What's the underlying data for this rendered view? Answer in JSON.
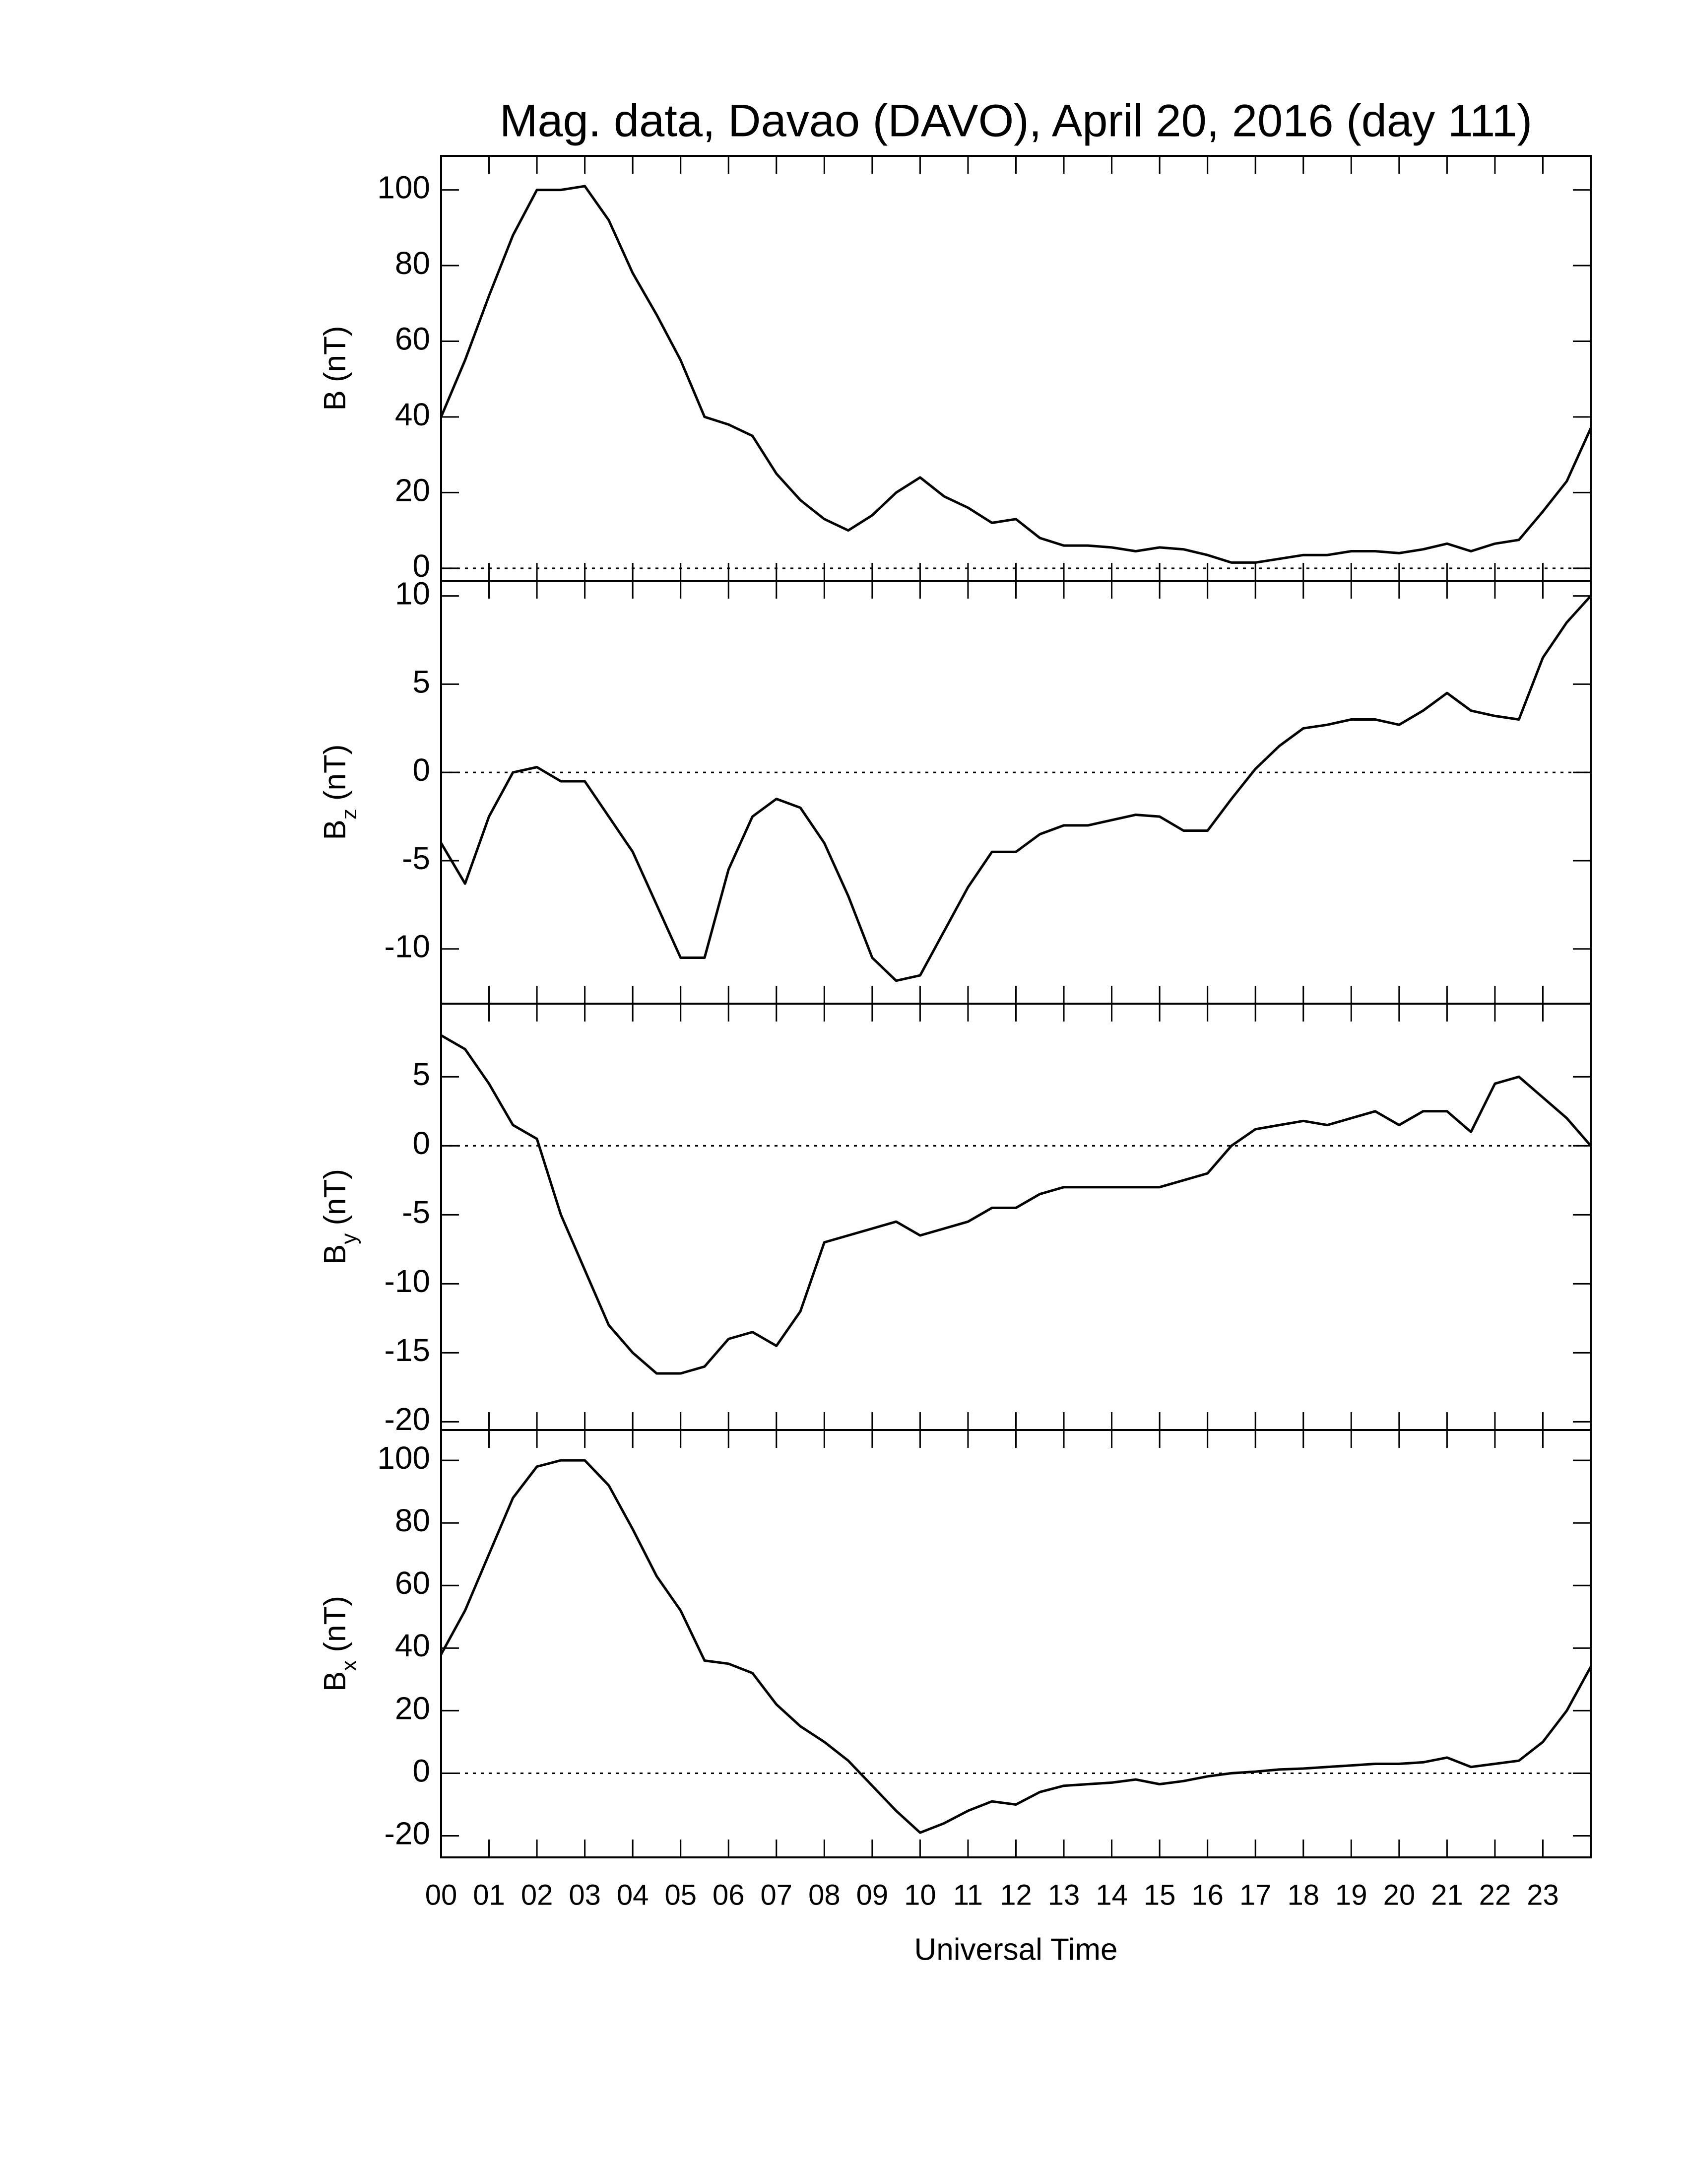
{
  "chart_data": [
    {
      "type": "line",
      "title": "Mag. data, Davao (DAVO), April 20, 2016 (day 111)",
      "ylabel": "B",
      "ylabel_unit": "(nT)",
      "color": "#000000",
      "x": [
        0,
        0.5,
        1,
        1.5,
        2,
        2.5,
        3,
        3.5,
        4,
        4.5,
        5,
        5.5,
        6,
        6.5,
        7,
        7.5,
        8,
        8.5,
        9,
        9.5,
        10,
        10.5,
        11,
        11.5,
        12,
        12.5,
        13,
        13.5,
        14,
        14.5,
        15,
        15.5,
        16,
        16.5,
        17,
        17.5,
        18,
        18.5,
        19,
        19.5,
        20,
        20.5,
        21,
        21.5,
        22,
        22.5,
        23,
        23.5,
        24
      ],
      "values": [
        40,
        55,
        72,
        88,
        100,
        100,
        101,
        92,
        78,
        67,
        55,
        40,
        38,
        35,
        25,
        18,
        13,
        10,
        14,
        20,
        24,
        19,
        16,
        12,
        13,
        8,
        6,
        6,
        5.5,
        4.5,
        5.5,
        5,
        3.5,
        1.5,
        1.5,
        2.5,
        3.5,
        3.5,
        4.5,
        4.5,
        4,
        5,
        6.5,
        4.5,
        6.5,
        7.5,
        15,
        23,
        37
      ],
      "xlim": [
        0,
        24
      ],
      "ylim": [
        -3.3,
        109
      ],
      "yticks": [
        0,
        20,
        40,
        60,
        80,
        100
      ]
    },
    {
      "type": "line",
      "ylabel": "B",
      "ylabel_subscript": "z",
      "ylabel_unit": "(nT)",
      "color": "#000000",
      "x": [
        0,
        0.5,
        1,
        1.5,
        2,
        2.5,
        3,
        3.5,
        4,
        4.5,
        5,
        5.5,
        6,
        6.5,
        7,
        7.5,
        8,
        8.5,
        9,
        9.5,
        10,
        10.5,
        11,
        11.5,
        12,
        12.5,
        13,
        13.5,
        14,
        14.5,
        15,
        15.5,
        16,
        16.5,
        17,
        17.5,
        18,
        18.5,
        19,
        19.5,
        20,
        20.5,
        21,
        21.5,
        22,
        22.5,
        23,
        23.5,
        24
      ],
      "values": [
        -4,
        -6.3,
        -2.5,
        0,
        0.3,
        -0.5,
        -0.5,
        -2.5,
        -4.5,
        -7.5,
        -10.5,
        -10.5,
        -5.5,
        -2.5,
        -1.5,
        -2,
        -4,
        -7,
        -10.5,
        -11.8,
        -11.5,
        -9,
        -6.5,
        -4.5,
        -4.5,
        -3.5,
        -3,
        -3,
        -2.7,
        -2.4,
        -2.5,
        -3.3,
        -3.3,
        -1.5,
        0.2,
        1.5,
        2.5,
        2.7,
        3,
        3,
        2.7,
        3.5,
        4.5,
        3.5,
        3.2,
        3,
        6.5,
        8.5,
        10
      ],
      "xlim": [
        0,
        24
      ],
      "ylim": [
        -13.1,
        10.86
      ],
      "yticks": [
        -10,
        -5,
        0,
        5,
        10
      ]
    },
    {
      "type": "line",
      "ylabel": "B",
      "ylabel_subscript": "y",
      "ylabel_unit": "(nT)",
      "color": "#000000",
      "x": [
        0,
        0.5,
        1,
        1.5,
        2,
        2.5,
        3,
        3.5,
        4,
        4.5,
        5,
        5.5,
        6,
        6.5,
        7,
        7.5,
        8,
        8.5,
        9,
        9.5,
        10,
        10.5,
        11,
        11.5,
        12,
        12.5,
        13,
        13.5,
        14,
        14.5,
        15,
        15.5,
        16,
        16.5,
        17,
        17.5,
        18,
        18.5,
        19,
        19.5,
        20,
        20.5,
        21,
        21.5,
        22,
        22.5,
        23,
        23.5,
        24
      ],
      "values": [
        8,
        7,
        4.5,
        1.5,
        0.5,
        -5,
        -9,
        -13,
        -15,
        -16.5,
        -16.5,
        -16,
        -14,
        -13.5,
        -14.5,
        -12,
        -7,
        -6.5,
        -6,
        -5.5,
        -6.5,
        -6,
        -5.5,
        -4.5,
        -4.5,
        -3.5,
        -3,
        -3,
        -3,
        -3,
        -3,
        -2.5,
        -2,
        0,
        1.2,
        1.5,
        1.8,
        1.5,
        2,
        2.5,
        1.5,
        2.5,
        2.5,
        1,
        4.5,
        5,
        3.5,
        2,
        0
      ],
      "xlim": [
        0,
        24
      ],
      "ylim": [
        -20.6,
        10.3
      ],
      "yticks": [
        -20,
        -15,
        -10,
        -5,
        0,
        5
      ]
    },
    {
      "type": "line",
      "ylabel": "B",
      "ylabel_subscript": "x",
      "ylabel_unit": "(nT)",
      "xlabel": "Universal Time",
      "color": "#000000",
      "x": [
        0,
        0.5,
        1,
        1.5,
        2,
        2.5,
        3,
        3.5,
        4,
        4.5,
        5,
        5.5,
        6,
        6.5,
        7,
        7.5,
        8,
        8.5,
        9,
        9.5,
        10,
        10.5,
        11,
        11.5,
        12,
        12.5,
        13,
        13.5,
        14,
        14.5,
        15,
        15.5,
        16,
        16.5,
        17,
        17.5,
        18,
        18.5,
        19,
        19.5,
        20,
        20.5,
        21,
        21.5,
        22,
        22.5,
        23,
        23.5,
        24
      ],
      "values": [
        38,
        52,
        70,
        88,
        98,
        100,
        100,
        92,
        78,
        63,
        52,
        36,
        35,
        32,
        22,
        15,
        10,
        4,
        -4,
        -12,
        -19,
        -16,
        -12,
        -9,
        -10,
        -6,
        -4,
        -3.5,
        -3,
        -2,
        -3.5,
        -2.5,
        -1,
        0,
        0.5,
        1.2,
        1.5,
        2,
        2.5,
        3,
        3,
        3.5,
        5,
        2,
        3,
        4,
        10,
        20,
        34
      ],
      "xlim": [
        0,
        24
      ],
      "ylim": [
        -26.9,
        109.7
      ],
      "yticks": [
        -20,
        0,
        20,
        40,
        60,
        80,
        100
      ],
      "xticks": [
        {
          "value": 0,
          "label": "00"
        },
        {
          "value": 1,
          "label": "01"
        },
        {
          "value": 2,
          "label": "02"
        },
        {
          "value": 3,
          "label": "03"
        },
        {
          "value": 4,
          "label": "04"
        },
        {
          "value": 5,
          "label": "05"
        },
        {
          "value": 6,
          "label": "06"
        },
        {
          "value": 7,
          "label": "07"
        },
        {
          "value": 8,
          "label": "08"
        },
        {
          "value": 9,
          "label": "09"
        },
        {
          "value": 10,
          "label": "10"
        },
        {
          "value": 11,
          "label": "11"
        },
        {
          "value": 12,
          "label": "12"
        },
        {
          "value": 13,
          "label": "13"
        },
        {
          "value": 14,
          "label": "14"
        },
        {
          "value": 15,
          "label": "15"
        },
        {
          "value": 16,
          "label": "16"
        },
        {
          "value": 17,
          "label": "17"
        },
        {
          "value": 18,
          "label": "18"
        },
        {
          "value": 19,
          "label": "19"
        },
        {
          "value": 20,
          "label": "20"
        },
        {
          "value": 21,
          "label": "21"
        },
        {
          "value": 22,
          "label": "22"
        },
        {
          "value": 23,
          "label": "23"
        }
      ]
    }
  ]
}
